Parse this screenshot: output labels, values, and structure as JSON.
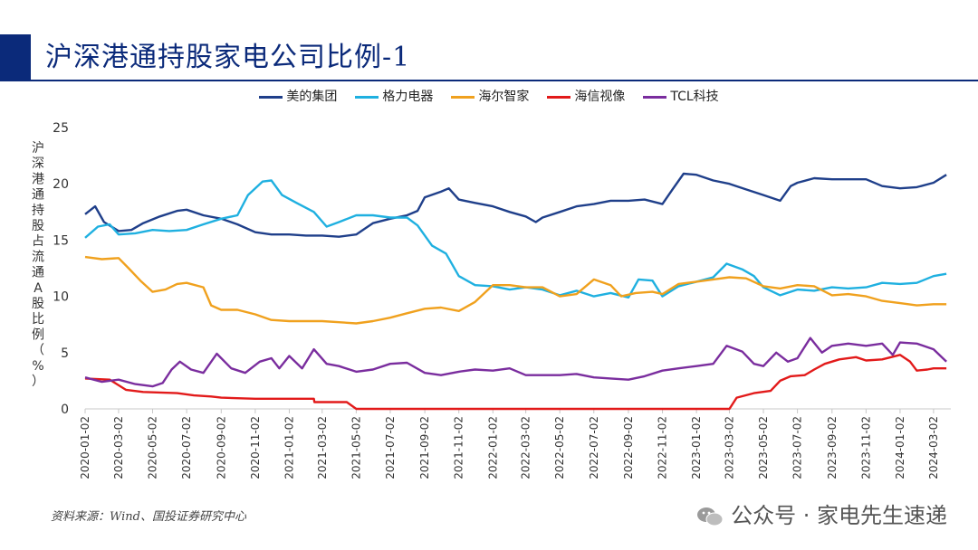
{
  "title": "沪深港通持股家电公司比例-1",
  "source": "资料来源：Wind、国投证券研究中心",
  "watermark": "公众号 · 家电先生速递",
  "watermark_icon": "wechat-icon",
  "colors": {
    "brand": "#0b2a7a",
    "axis": "#c8c8c8",
    "text": "#333333"
  },
  "chart_data": {
    "type": "line",
    "title": "",
    "ylabel": "沪深港通持股占流通A股比例（%）",
    "xlabel": "",
    "ylim": [
      0,
      25
    ],
    "yticks": [
      0,
      5,
      10,
      15,
      20,
      25
    ],
    "grid": false,
    "legend_position": "top",
    "xlim": [
      "2020-01-02",
      "2024-04-02"
    ],
    "xticks": [
      "2020-01-02",
      "2020-03-02",
      "2020-05-02",
      "2020-07-02",
      "2020-09-02",
      "2020-11-02",
      "2021-01-02",
      "2021-03-02",
      "2021-05-02",
      "2021-07-02",
      "2021-09-02",
      "2021-11-02",
      "2022-01-02",
      "2022-03-02",
      "2022-05-02",
      "2022-07-02",
      "2022-09-02",
      "2022-11-02",
      "2023-01-02",
      "2023-03-02",
      "2023-05-02",
      "2023-07-02",
      "2023-09-02",
      "2023-11-02",
      "2024-01-02",
      "2024-03-02"
    ],
    "series": [
      {
        "name": "美的集团",
        "color": "#1f3f8a",
        "points": [
          [
            "2020-01-02",
            17.3
          ],
          [
            "2020-01-20",
            18.0
          ],
          [
            "2020-02-05",
            16.6
          ],
          [
            "2020-03-02",
            15.8
          ],
          [
            "2020-03-25",
            15.9
          ],
          [
            "2020-04-15",
            16.5
          ],
          [
            "2020-05-15",
            17.1
          ],
          [
            "2020-06-15",
            17.6
          ],
          [
            "2020-07-02",
            17.7
          ],
          [
            "2020-08-01",
            17.2
          ],
          [
            "2020-09-02",
            16.9
          ],
          [
            "2020-10-01",
            16.4
          ],
          [
            "2020-11-02",
            15.7
          ],
          [
            "2020-12-01",
            15.5
          ],
          [
            "2021-01-02",
            15.5
          ],
          [
            "2021-02-01",
            15.4
          ],
          [
            "2021-03-02",
            15.4
          ],
          [
            "2021-04-01",
            15.3
          ],
          [
            "2021-05-02",
            15.5
          ],
          [
            "2021-06-01",
            16.5
          ],
          [
            "2021-07-02",
            16.9
          ],
          [
            "2021-08-01",
            17.2
          ],
          [
            "2021-08-20",
            17.6
          ],
          [
            "2021-09-02",
            18.8
          ],
          [
            "2021-10-01",
            19.3
          ],
          [
            "2021-10-15",
            19.6
          ],
          [
            "2021-11-02",
            18.6
          ],
          [
            "2021-12-01",
            18.3
          ],
          [
            "2022-01-02",
            18.0
          ],
          [
            "2022-02-01",
            17.5
          ],
          [
            "2022-03-02",
            17.1
          ],
          [
            "2022-03-20",
            16.6
          ],
          [
            "2022-04-01",
            17.0
          ],
          [
            "2022-05-02",
            17.5
          ],
          [
            "2022-06-01",
            18.0
          ],
          [
            "2022-07-02",
            18.2
          ],
          [
            "2022-08-01",
            18.5
          ],
          [
            "2022-09-02",
            18.5
          ],
          [
            "2022-10-01",
            18.6
          ],
          [
            "2022-11-02",
            18.2
          ],
          [
            "2022-11-20",
            19.5
          ],
          [
            "2022-12-10",
            20.9
          ],
          [
            "2023-01-02",
            20.8
          ],
          [
            "2023-02-01",
            20.3
          ],
          [
            "2023-03-02",
            20.0
          ],
          [
            "2023-04-01",
            19.5
          ],
          [
            "2023-05-02",
            19.0
          ],
          [
            "2023-06-01",
            18.5
          ],
          [
            "2023-06-20",
            19.8
          ],
          [
            "2023-07-02",
            20.1
          ],
          [
            "2023-08-01",
            20.5
          ],
          [
            "2023-09-02",
            20.4
          ],
          [
            "2023-10-01",
            20.4
          ],
          [
            "2023-11-02",
            20.4
          ],
          [
            "2023-12-01",
            19.8
          ],
          [
            "2024-01-02",
            19.6
          ],
          [
            "2024-02-01",
            19.7
          ],
          [
            "2024-03-02",
            20.1
          ],
          [
            "2024-03-25",
            20.8
          ]
        ]
      },
      {
        "name": "格力电器",
        "color": "#1fb0e0",
        "points": [
          [
            "2020-01-02",
            15.2
          ],
          [
            "2020-01-25",
            16.2
          ],
          [
            "2020-02-15",
            16.4
          ],
          [
            "2020-03-02",
            15.5
          ],
          [
            "2020-04-01",
            15.6
          ],
          [
            "2020-05-02",
            15.9
          ],
          [
            "2020-06-01",
            15.8
          ],
          [
            "2020-07-02",
            15.9
          ],
          [
            "2020-08-01",
            16.4
          ],
          [
            "2020-09-02",
            16.9
          ],
          [
            "2020-10-01",
            17.2
          ],
          [
            "2020-10-20",
            19.0
          ],
          [
            "2020-11-15",
            20.2
          ],
          [
            "2020-12-01",
            20.3
          ],
          [
            "2020-12-20",
            19.0
          ],
          [
            "2021-01-15",
            18.3
          ],
          [
            "2021-02-15",
            17.5
          ],
          [
            "2021-03-10",
            16.2
          ],
          [
            "2021-04-01",
            16.6
          ],
          [
            "2021-05-02",
            17.2
          ],
          [
            "2021-06-01",
            17.2
          ],
          [
            "2021-07-02",
            17.0
          ],
          [
            "2021-08-01",
            17.0
          ],
          [
            "2021-08-20",
            16.3
          ],
          [
            "2021-09-15",
            14.5
          ],
          [
            "2021-10-10",
            13.8
          ],
          [
            "2021-11-02",
            11.8
          ],
          [
            "2021-12-01",
            11.0
          ],
          [
            "2022-01-02",
            10.9
          ],
          [
            "2022-02-01",
            10.6
          ],
          [
            "2022-03-02",
            10.8
          ],
          [
            "2022-04-01",
            10.6
          ],
          [
            "2022-05-02",
            10.1
          ],
          [
            "2022-06-01",
            10.5
          ],
          [
            "2022-07-02",
            10.0
          ],
          [
            "2022-08-01",
            10.3
          ],
          [
            "2022-09-02",
            9.9
          ],
          [
            "2022-09-20",
            11.5
          ],
          [
            "2022-10-15",
            11.4
          ],
          [
            "2022-11-02",
            10.0
          ],
          [
            "2022-12-01",
            10.9
          ],
          [
            "2023-01-02",
            11.3
          ],
          [
            "2023-02-01",
            11.7
          ],
          [
            "2023-02-25",
            12.9
          ],
          [
            "2023-03-25",
            12.4
          ],
          [
            "2023-04-15",
            11.8
          ],
          [
            "2023-05-02",
            10.8
          ],
          [
            "2023-06-01",
            10.1
          ],
          [
            "2023-07-02",
            10.6
          ],
          [
            "2023-08-01",
            10.5
          ],
          [
            "2023-09-02",
            10.8
          ],
          [
            "2023-10-01",
            10.7
          ],
          [
            "2023-11-02",
            10.8
          ],
          [
            "2023-12-01",
            11.2
          ],
          [
            "2024-01-02",
            11.1
          ],
          [
            "2024-02-01",
            11.2
          ],
          [
            "2024-03-02",
            11.8
          ],
          [
            "2024-03-25",
            12.0
          ]
        ]
      },
      {
        "name": "海尔智家",
        "color": "#f0a11e",
        "points": [
          [
            "2020-01-02",
            13.5
          ],
          [
            "2020-02-01",
            13.3
          ],
          [
            "2020-03-02",
            13.4
          ],
          [
            "2020-03-20",
            12.5
          ],
          [
            "2020-04-10",
            11.4
          ],
          [
            "2020-05-02",
            10.4
          ],
          [
            "2020-05-25",
            10.6
          ],
          [
            "2020-06-15",
            11.1
          ],
          [
            "2020-07-02",
            11.2
          ],
          [
            "2020-08-01",
            10.8
          ],
          [
            "2020-08-15",
            9.2
          ],
          [
            "2020-09-02",
            8.8
          ],
          [
            "2020-10-01",
            8.8
          ],
          [
            "2020-11-02",
            8.4
          ],
          [
            "2020-12-01",
            7.9
          ],
          [
            "2021-01-02",
            7.8
          ],
          [
            "2021-02-01",
            7.8
          ],
          [
            "2021-03-02",
            7.8
          ],
          [
            "2021-04-01",
            7.7
          ],
          [
            "2021-05-02",
            7.6
          ],
          [
            "2021-06-01",
            7.8
          ],
          [
            "2021-07-02",
            8.1
          ],
          [
            "2021-08-01",
            8.5
          ],
          [
            "2021-09-02",
            8.9
          ],
          [
            "2021-10-01",
            9.0
          ],
          [
            "2021-11-02",
            8.7
          ],
          [
            "2021-12-01",
            9.5
          ],
          [
            "2022-01-02",
            11.0
          ],
          [
            "2022-02-01",
            11.0
          ],
          [
            "2022-03-02",
            10.8
          ],
          [
            "2022-04-01",
            10.8
          ],
          [
            "2022-05-02",
            10.0
          ],
          [
            "2022-06-01",
            10.2
          ],
          [
            "2022-07-02",
            11.5
          ],
          [
            "2022-08-01",
            11.0
          ],
          [
            "2022-08-20",
            10.0
          ],
          [
            "2022-09-15",
            10.3
          ],
          [
            "2022-10-15",
            10.4
          ],
          [
            "2022-11-02",
            10.2
          ],
          [
            "2022-12-01",
            11.1
          ],
          [
            "2023-01-02",
            11.3
          ],
          [
            "2023-02-01",
            11.5
          ],
          [
            "2023-03-02",
            11.7
          ],
          [
            "2023-04-01",
            11.6
          ],
          [
            "2023-05-02",
            10.9
          ],
          [
            "2023-06-01",
            10.7
          ],
          [
            "2023-07-02",
            11.0
          ],
          [
            "2023-08-01",
            10.9
          ],
          [
            "2023-09-02",
            10.1
          ],
          [
            "2023-10-01",
            10.2
          ],
          [
            "2023-11-02",
            10.0
          ],
          [
            "2023-12-01",
            9.6
          ],
          [
            "2024-01-02",
            9.4
          ],
          [
            "2024-02-01",
            9.2
          ],
          [
            "2024-03-02",
            9.3
          ],
          [
            "2024-03-25",
            9.3
          ]
        ]
      },
      {
        "name": "海信视像",
        "color": "#e21a1a",
        "points": [
          [
            "2020-01-02",
            2.7
          ],
          [
            "2020-02-15",
            2.6
          ],
          [
            "2020-03-15",
            1.7
          ],
          [
            "2020-04-15",
            1.5
          ],
          [
            "2020-06-15",
            1.4
          ],
          [
            "2020-07-15",
            1.2
          ],
          [
            "2020-08-15",
            1.1
          ],
          [
            "2020-09-02",
            1.0
          ],
          [
            "2020-11-02",
            0.9
          ],
          [
            "2021-02-15",
            0.9
          ],
          [
            "2021-02-16",
            0.6
          ],
          [
            "2021-04-15",
            0.6
          ],
          [
            "2021-05-02",
            0.0
          ],
          [
            "2022-12-01",
            0.0
          ],
          [
            "2023-03-02",
            0.0
          ],
          [
            "2023-03-15",
            1.0
          ],
          [
            "2023-04-15",
            1.4
          ],
          [
            "2023-05-15",
            1.6
          ],
          [
            "2023-06-01",
            2.5
          ],
          [
            "2023-06-20",
            2.9
          ],
          [
            "2023-07-15",
            3.0
          ],
          [
            "2023-08-01",
            3.5
          ],
          [
            "2023-08-20",
            4.0
          ],
          [
            "2023-09-15",
            4.4
          ],
          [
            "2023-10-15",
            4.6
          ],
          [
            "2023-11-02",
            4.3
          ],
          [
            "2023-12-01",
            4.4
          ],
          [
            "2024-01-02",
            4.8
          ],
          [
            "2024-01-20",
            4.2
          ],
          [
            "2024-02-01",
            3.4
          ],
          [
            "2024-02-20",
            3.5
          ],
          [
            "2024-03-02",
            3.6
          ],
          [
            "2024-03-25",
            3.6
          ]
        ]
      },
      {
        "name": "TCL科技",
        "color": "#7a2d9e",
        "points": [
          [
            "2020-01-02",
            2.8
          ],
          [
            "2020-02-01",
            2.4
          ],
          [
            "2020-03-02",
            2.6
          ],
          [
            "2020-04-01",
            2.2
          ],
          [
            "2020-05-02",
            2.0
          ],
          [
            "2020-05-20",
            2.3
          ],
          [
            "2020-06-05",
            3.5
          ],
          [
            "2020-06-20",
            4.2
          ],
          [
            "2020-07-10",
            3.5
          ],
          [
            "2020-08-01",
            3.2
          ],
          [
            "2020-08-25",
            4.9
          ],
          [
            "2020-09-20",
            3.6
          ],
          [
            "2020-10-15",
            3.2
          ],
          [
            "2020-11-10",
            4.2
          ],
          [
            "2020-12-01",
            4.5
          ],
          [
            "2020-12-15",
            3.6
          ],
          [
            "2021-01-02",
            4.7
          ],
          [
            "2021-01-25",
            3.6
          ],
          [
            "2021-02-15",
            5.3
          ],
          [
            "2021-03-10",
            4.0
          ],
          [
            "2021-04-01",
            3.8
          ],
          [
            "2021-05-02",
            3.3
          ],
          [
            "2021-06-01",
            3.5
          ],
          [
            "2021-07-02",
            4.0
          ],
          [
            "2021-08-01",
            4.1
          ],
          [
            "2021-09-02",
            3.2
          ],
          [
            "2021-10-01",
            3.0
          ],
          [
            "2021-11-02",
            3.3
          ],
          [
            "2021-12-01",
            3.5
          ],
          [
            "2022-01-02",
            3.4
          ],
          [
            "2022-02-01",
            3.6
          ],
          [
            "2022-03-02",
            3.0
          ],
          [
            "2022-04-01",
            3.0
          ],
          [
            "2022-05-02",
            3.0
          ],
          [
            "2022-06-01",
            3.1
          ],
          [
            "2022-07-02",
            2.8
          ],
          [
            "2022-08-01",
            2.7
          ],
          [
            "2022-09-02",
            2.6
          ],
          [
            "2022-10-01",
            2.9
          ],
          [
            "2022-11-02",
            3.4
          ],
          [
            "2022-12-01",
            3.6
          ],
          [
            "2023-01-02",
            3.8
          ],
          [
            "2023-02-01",
            4.0
          ],
          [
            "2023-02-25",
            5.6
          ],
          [
            "2023-03-25",
            5.1
          ],
          [
            "2023-04-15",
            4.0
          ],
          [
            "2023-05-02",
            3.8
          ],
          [
            "2023-05-25",
            5.0
          ],
          [
            "2023-06-15",
            4.2
          ],
          [
            "2023-07-02",
            4.5
          ],
          [
            "2023-07-25",
            6.3
          ],
          [
            "2023-08-15",
            5.0
          ],
          [
            "2023-09-02",
            5.6
          ],
          [
            "2023-10-01",
            5.8
          ],
          [
            "2023-11-02",
            5.6
          ],
          [
            "2023-12-01",
            5.8
          ],
          [
            "2023-12-20",
            4.8
          ],
          [
            "2024-01-02",
            5.9
          ],
          [
            "2024-02-01",
            5.8
          ],
          [
            "2024-03-02",
            5.3
          ],
          [
            "2024-03-25",
            4.2
          ]
        ]
      }
    ]
  }
}
